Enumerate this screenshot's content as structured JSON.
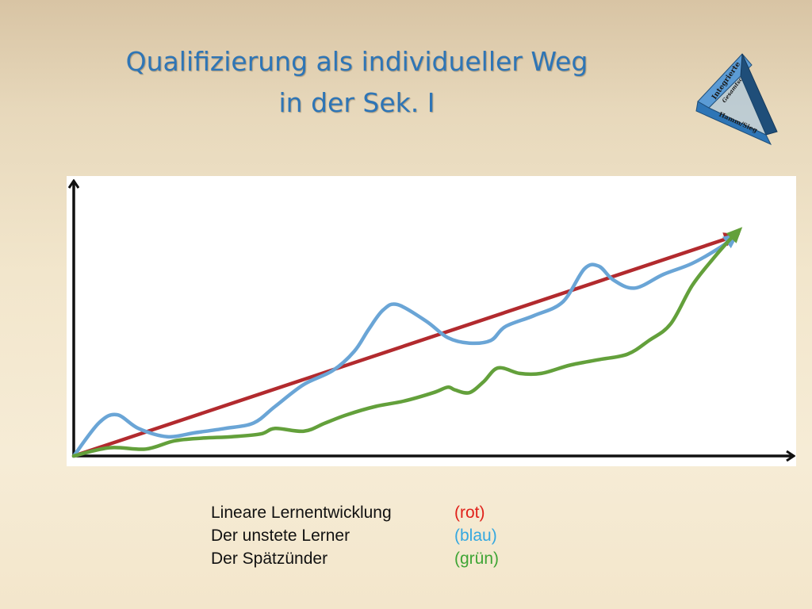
{
  "slide": {
    "title_line1": "Qualifizierung als individueller Weg",
    "title_line2": "in der Sek. I"
  },
  "logo": {
    "text_top": "Integrierte",
    "text_mid": "Gesamtschule",
    "text_bottom": "Hamm/Sieg",
    "colors": {
      "face_light": "#5b9bd5",
      "face_mid": "#2e75b6",
      "face_dark": "#1f4e79",
      "ink": "#1a1a1a"
    }
  },
  "legend": [
    {
      "label": "Lineare Lernentwicklung",
      "color_label": "(rot)",
      "color": "#e0211a"
    },
    {
      "label": "Der unstete Lerner",
      "color_label": "(blau)",
      "color": "#35a8e0"
    },
    {
      "label": "Der Spätzünder",
      "color_label": "(grün)",
      "color": "#3fa535"
    }
  ],
  "chart_data": {
    "type": "line",
    "title": "",
    "xlabel": "",
    "ylabel": "",
    "xlim": [
      0,
      100
    ],
    "ylim": [
      0,
      100
    ],
    "grid": false,
    "axis_tick_labels": false,
    "series": [
      {
        "color": "#b22a2e",
        "arrow_end": true,
        "points": [
          [
            0,
            0
          ],
          [
            92,
            80
          ]
        ]
      },
      {
        "color": "#6aa5d6",
        "arrow_end": true,
        "points": [
          [
            0,
            0
          ],
          [
            3.5,
            12
          ],
          [
            6,
            15
          ],
          [
            9,
            10
          ],
          [
            13,
            7
          ],
          [
            17,
            8.5
          ],
          [
            21,
            10
          ],
          [
            25,
            12
          ],
          [
            28,
            18
          ],
          [
            32,
            26
          ],
          [
            36,
            31
          ],
          [
            39,
            38
          ],
          [
            41,
            46
          ],
          [
            43,
            53
          ],
          [
            45,
            55
          ],
          [
            49,
            49
          ],
          [
            52,
            43
          ],
          [
            55,
            41
          ],
          [
            58,
            42
          ],
          [
            60,
            47
          ],
          [
            64,
            51
          ],
          [
            68,
            56
          ],
          [
            71,
            68
          ],
          [
            73,
            69
          ],
          [
            75,
            64
          ],
          [
            78,
            61
          ],
          [
            82,
            66
          ],
          [
            86,
            70
          ],
          [
            90,
            76
          ],
          [
            92,
            80
          ]
        ]
      },
      {
        "color": "#63a03b",
        "arrow_end": true,
        "points": [
          [
            0,
            0
          ],
          [
            5,
            3
          ],
          [
            10,
            2.5
          ],
          [
            14,
            5.5
          ],
          [
            18,
            6.5
          ],
          [
            22,
            7
          ],
          [
            26,
            8
          ],
          [
            28,
            10
          ],
          [
            32,
            9
          ],
          [
            35,
            12
          ],
          [
            38,
            15
          ],
          [
            42,
            18
          ],
          [
            46,
            20
          ],
          [
            50,
            23
          ],
          [
            52,
            25
          ],
          [
            53,
            24
          ],
          [
            55,
            23
          ],
          [
            57,
            27
          ],
          [
            59,
            32
          ],
          [
            62,
            30
          ],
          [
            65,
            30
          ],
          [
            69,
            33
          ],
          [
            73,
            35
          ],
          [
            77,
            37
          ],
          [
            80,
            42
          ],
          [
            83,
            48
          ],
          [
            86,
            62
          ],
          [
            89,
            72
          ],
          [
            91,
            78
          ],
          [
            92.5,
            82
          ]
        ]
      }
    ]
  }
}
